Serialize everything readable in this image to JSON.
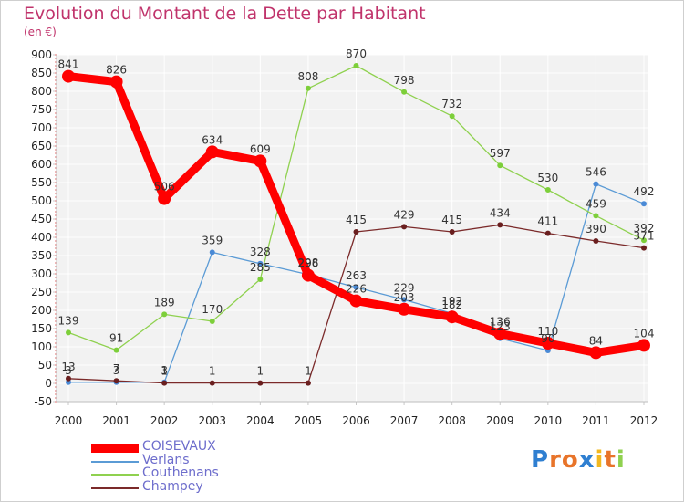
{
  "title": "Evolution du Montant de la Dette par Habitant",
  "subtitle": "(en €)",
  "logo_text": "Proxiti",
  "chart_data": {
    "type": "line",
    "title": "Evolution du Montant de la Dette par Habitant",
    "ylabel": "(en €)",
    "xlabel": "",
    "ylim": [
      -50,
      900
    ],
    "yticks": [
      -50,
      0,
      50,
      100,
      150,
      200,
      250,
      300,
      350,
      400,
      450,
      500,
      550,
      600,
      650,
      700,
      750,
      800,
      850,
      900
    ],
    "grid": true,
    "legend": "bottom-left",
    "categories": [
      "2000",
      "2001",
      "2002",
      "2003",
      "2004",
      "2005",
      "2006",
      "2007",
      "2008",
      "2009",
      "2010",
      "2011",
      "2012"
    ],
    "series": [
      {
        "name": "COISEVAUX",
        "color": "#ff0000",
        "values": [
          841,
          826,
          506,
          634,
          609,
          296,
          226,
          203,
          182,
          136,
          110,
          84,
          104
        ]
      },
      {
        "name": "Verlans",
        "color": "#5b9bd5",
        "values": [
          3,
          3,
          3,
          359,
          328,
          298,
          263,
          229,
          192,
          123,
          90,
          546,
          492
        ]
      },
      {
        "name": "Couthenans",
        "color": "#8fd14f",
        "values": [
          139,
          91,
          189,
          170,
          285,
          808,
          870,
          798,
          732,
          597,
          530,
          459,
          392
        ]
      },
      {
        "name": "Champey",
        "color": "#7b2a2a",
        "values": [
          13,
          7,
          1,
          1,
          1,
          1,
          415,
          429,
          415,
          434,
          411,
          390,
          371
        ]
      }
    ]
  }
}
